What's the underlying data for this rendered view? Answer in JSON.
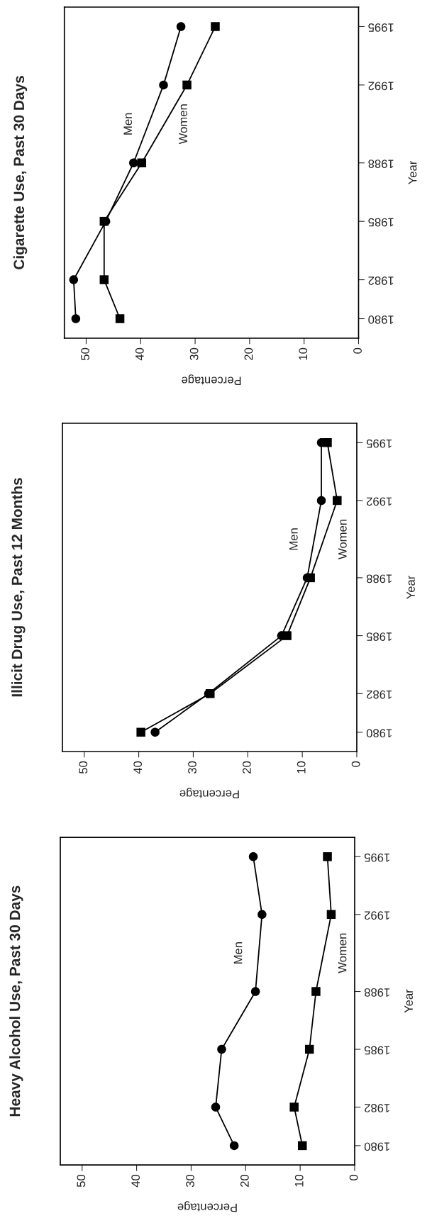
{
  "chart_data": [
    {
      "type": "line",
      "orientation": "horizontal",
      "title": "Cigarette Use, Past 30 Days",
      "xlabel": "Percentage",
      "ylabel": "Year",
      "x": [
        1980,
        1982,
        1985,
        1988,
        1992,
        1995
      ],
      "xlim": [
        54,
        0
      ],
      "xticks": [
        50,
        40,
        30,
        20,
        10,
        0
      ],
      "ylim": [
        1979,
        1996
      ],
      "yticks": [
        1980,
        1982,
        1985,
        1988,
        1992,
        1995
      ],
      "series": [
        {
          "name": "Men",
          "color": "#000000",
          "marker": "circle",
          "values": [
            51.9,
            52.3,
            46.4,
            41.3,
            35.8,
            32.6
          ]
        },
        {
          "name": "Women",
          "color": "#000000",
          "marker": "square",
          "values": [
            43.8,
            46.7,
            46.7,
            39.8,
            31.5,
            26.3
          ]
        }
      ]
    },
    {
      "type": "line",
      "orientation": "horizontal",
      "title": "Illicit Drug Use, Past 12 Months",
      "xlabel": "Percentage",
      "ylabel": "Year",
      "x": [
        1980,
        1982,
        1985,
        1988,
        1992,
        1995
      ],
      "xlim": [
        54,
        0
      ],
      "xticks": [
        50,
        40,
        30,
        20,
        10,
        0
      ],
      "ylim": [
        1979,
        1996
      ],
      "yticks": [
        1980,
        1982,
        1985,
        1988,
        1992,
        1995
      ],
      "series": [
        {
          "name": "Men",
          "color": "#000000",
          "marker": "circle",
          "values": [
            37.0,
            27.2,
            13.8,
            9.1,
            6.5,
            6.5
          ]
        },
        {
          "name": "Women",
          "color": "#000000",
          "marker": "square",
          "values": [
            39.6,
            26.9,
            12.8,
            8.5,
            3.6,
            5.4
          ]
        }
      ]
    },
    {
      "type": "line",
      "orientation": "horizontal",
      "title": "Heavy Alcohol Use, Past 30 Days",
      "xlabel": "Percentage",
      "ylabel": "Year",
      "x": [
        1980,
        1982,
        1985,
        1988,
        1992,
        1995
      ],
      "xlim": [
        54,
        0
      ],
      "xticks": [
        50,
        40,
        30,
        20,
        10,
        0
      ],
      "ylim": [
        1979,
        1996
      ],
      "yticks": [
        1980,
        1982,
        1985,
        1988,
        1992,
        1995
      ],
      "series": [
        {
          "name": "Men",
          "color": "#000000",
          "marker": "circle",
          "values": [
            22.1,
            25.5,
            24.4,
            18.2,
            17.0,
            18.6
          ]
        },
        {
          "name": "Women",
          "color": "#000000",
          "marker": "square",
          "values": [
            9.6,
            11.1,
            8.3,
            7.1,
            4.3,
            5.0
          ]
        }
      ]
    }
  ]
}
